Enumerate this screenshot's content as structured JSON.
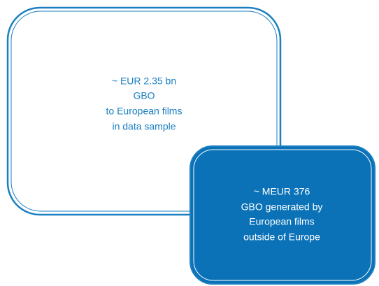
{
  "boxes": [
    {
      "lines": [
        "~ EUR 2.35 bn",
        "GBO",
        "to European films",
        "in data sample"
      ]
    },
    {
      "lines": [
        "~ MEUR 376",
        "GBO generated by",
        "European films",
        "outside of Europe"
      ]
    }
  ]
}
